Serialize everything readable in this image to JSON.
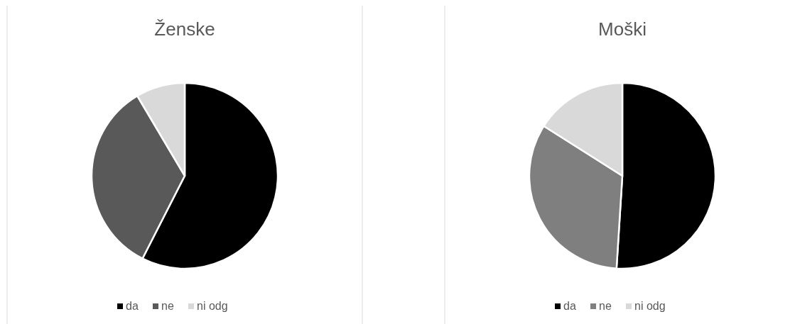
{
  "chart_data": [
    {
      "type": "pie",
      "title": "Ženske",
      "categories": [
        "da",
        "ne",
        "ni odg"
      ],
      "values": [
        57.5,
        34,
        8.5
      ],
      "colors": [
        "#000000",
        "#595959",
        "#d9d9d9"
      ],
      "legend": "bottom"
    },
    {
      "type": "pie",
      "title": "Moški",
      "categories": [
        "da",
        "ne",
        "ni odg"
      ],
      "values": [
        51,
        33,
        16
      ],
      "colors": [
        "#000000",
        "#7f7f7f",
        "#d9d9d9"
      ],
      "legend": "bottom"
    }
  ]
}
